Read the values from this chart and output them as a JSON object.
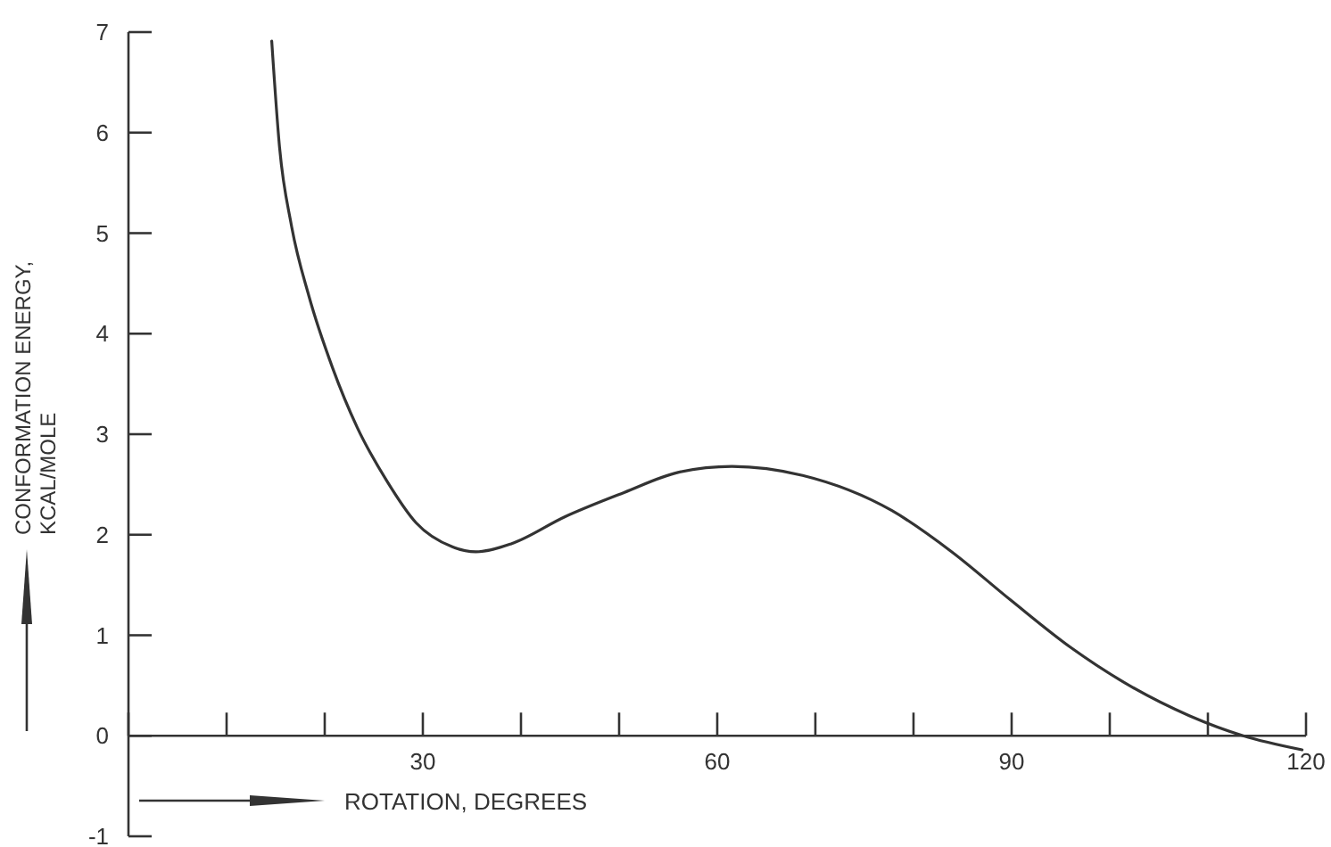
{
  "chart_data": {
    "type": "line",
    "xlabel": "ROTATION, DEGREES",
    "ylabel": "CONFORMATION ENERGY, KCAL/MOLE",
    "xlim": [
      0,
      120
    ],
    "ylim": [
      -1,
      7
    ],
    "xticks": [
      {
        "value": 0,
        "label": null
      },
      {
        "value": 10,
        "label": null
      },
      {
        "value": 20,
        "label": null
      },
      30,
      {
        "value": 40,
        "label": null
      },
      {
        "value": 50,
        "label": null
      },
      60,
      {
        "value": 70,
        "label": null
      },
      {
        "value": 80,
        "label": null
      },
      90,
      {
        "value": 100,
        "label": null
      },
      {
        "value": 110,
        "label": null
      },
      120
    ],
    "yticks": [
      -1,
      0,
      1,
      2,
      3,
      4,
      5,
      6,
      7
    ],
    "marker": "none",
    "line_style": "solid",
    "series": [
      {
        "color": "#333333",
        "x": [
          14.6,
          15.4,
          16.6,
          18.4,
          20.8,
          23.3,
          26.3,
          29.3,
          33.0,
          35.4,
          39.0,
          44.5,
          50.5,
          56.0,
          61.5,
          68.7,
          77.8,
          83.9,
          89.9,
          96.0,
          102.0,
          108.1,
          113.6,
          119.6
        ],
        "values": [
          6.91,
          5.85,
          5.08,
          4.37,
          3.66,
          3.07,
          2.54,
          2.12,
          1.88,
          1.83,
          1.91,
          2.18,
          2.42,
          2.62,
          2.68,
          2.59,
          2.24,
          1.83,
          1.35,
          0.88,
          0.5,
          0.2,
          0,
          -0.14
        ]
      }
    ]
  }
}
